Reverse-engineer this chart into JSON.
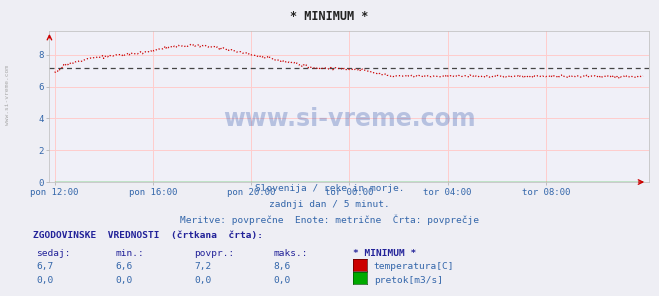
{
  "title": "* MINIMUM *",
  "bg_color": "#eeeef4",
  "plot_bg_color": "#f0f0f8",
  "x_ticks": [
    "pon 12:00",
    "pon 16:00",
    "pon 20:00",
    "tor 00:00",
    "tor 04:00",
    "tor 08:00"
  ],
  "x_tick_positions": [
    0,
    96,
    192,
    288,
    384,
    480
  ],
  "total_points": 576,
  "ylim": [
    0,
    9.5
  ],
  "yticks": [
    0,
    2,
    4,
    6,
    8
  ],
  "temp_color": "#cc0000",
  "flow_color": "#00aa00",
  "avg_color": "#444444",
  "avg_value": 7.2,
  "subtitle1": "Slovenija / reke in morje.",
  "subtitle2": "zadnji dan / 5 minut.",
  "subtitle3": "Meritve: povprečne  Enote: metrične  Črta: povprečje",
  "hist_title": "ZGODOVINSKE  VREDNOSTI  (črtkana  črta):",
  "col_sedaj": "sedaj:",
  "col_min": "min.:",
  "col_povpr": "povpr.:",
  "col_maks": "maks.:",
  "col_name": "* MINIMUM *",
  "temp_sedaj": "6,7",
  "temp_min": "6,6",
  "temp_povpr": "7,2",
  "temp_maks": "8,6",
  "flow_sedaj": "0,0",
  "flow_min": "0,0",
  "flow_povpr": "0,0",
  "flow_maks": "0,0",
  "label_temp": "temperatura[C]",
  "label_flow": "pretok[m3/s]",
  "watermark": "www.si-vreme.com",
  "side_text": "www.si-vreme.com",
  "grid_color": "#ffcccc",
  "axis_color": "#cc0000",
  "text_color": "#3366aa",
  "header_color": "#222299"
}
